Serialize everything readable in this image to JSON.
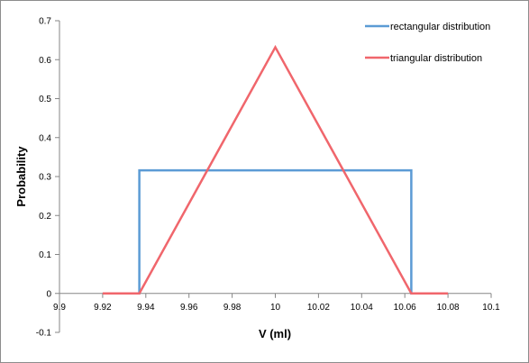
{
  "chart_data": {
    "type": "line",
    "title": "",
    "xlabel": "V (ml)",
    "ylabel": "Probability",
    "xlim": [
      9.9,
      10.1
    ],
    "ylim": [
      -0.1,
      0.7
    ],
    "x_ticks": [
      9.9,
      9.92,
      9.94,
      9.96,
      9.98,
      10,
      10.02,
      10.04,
      10.06,
      10.08,
      10.1
    ],
    "x_tick_labels": [
      "9.9",
      "9.92",
      "9.94",
      "9.96",
      "9.98",
      "10",
      "10.02",
      "10.04",
      "10.06",
      "10.08",
      "10.1"
    ],
    "y_ticks": [
      -0.1,
      0,
      0.1,
      0.2,
      0.3,
      0.4,
      0.5,
      0.6,
      0.7
    ],
    "y_tick_labels": [
      "-0.1",
      "0",
      "0.1",
      "0.2",
      "0.3",
      "0.4",
      "0.5",
      "0.6",
      "0.7"
    ],
    "grid": false,
    "legend_position": "top-right",
    "series": [
      {
        "name": "rectangular distribution",
        "color": "#5b9bd5",
        "x": [
          9.92,
          9.937,
          9.937,
          10.063,
          10.063,
          10.08
        ],
        "y": [
          0,
          0,
          0.316,
          0.316,
          0,
          0
        ]
      },
      {
        "name": "triangular distribution",
        "color": "#f0666c",
        "x": [
          9.92,
          9.937,
          10.0,
          10.063,
          10.08
        ],
        "y": [
          0,
          0,
          0.632,
          0,
          0
        ]
      }
    ]
  }
}
